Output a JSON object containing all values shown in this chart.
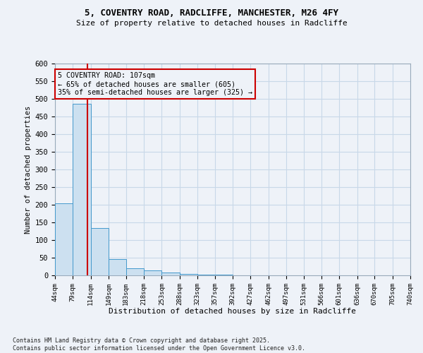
{
  "title1": "5, COVENTRY ROAD, RADCLIFFE, MANCHESTER, M26 4FY",
  "title2": "Size of property relative to detached houses in Radcliffe",
  "xlabel": "Distribution of detached houses by size in Radcliffe",
  "ylabel": "Number of detached properties",
  "bin_edges": [
    44,
    79,
    114,
    149,
    183,
    218,
    253,
    288,
    323,
    357,
    392,
    427,
    462,
    497,
    531,
    566,
    601,
    636,
    670,
    705,
    740
  ],
  "bar_heights": [
    205,
    487,
    135,
    46,
    20,
    14,
    8,
    4,
    3,
    2,
    1,
    1,
    1,
    1,
    0,
    0,
    0,
    0,
    0,
    0
  ],
  "bar_color": "#cce0f0",
  "bar_edgecolor": "#4499cc",
  "grid_color": "#c8d8e8",
  "property_size": 107,
  "annotation_title": "5 COVENTRY ROAD: 107sqm",
  "annotation_line1": "← 65% of detached houses are smaller (605)",
  "annotation_line2": "35% of semi-detached houses are larger (325) →",
  "annotation_box_color": "#cc0000",
  "vline_color": "#cc0000",
  "footer1": "Contains HM Land Registry data © Crown copyright and database right 2025.",
  "footer2": "Contains public sector information licensed under the Open Government Licence v3.0.",
  "ylim": [
    0,
    600
  ],
  "background_color": "#eef2f8",
  "yticks": [
    0,
    50,
    100,
    150,
    200,
    250,
    300,
    350,
    400,
    450,
    500,
    550,
    600
  ]
}
